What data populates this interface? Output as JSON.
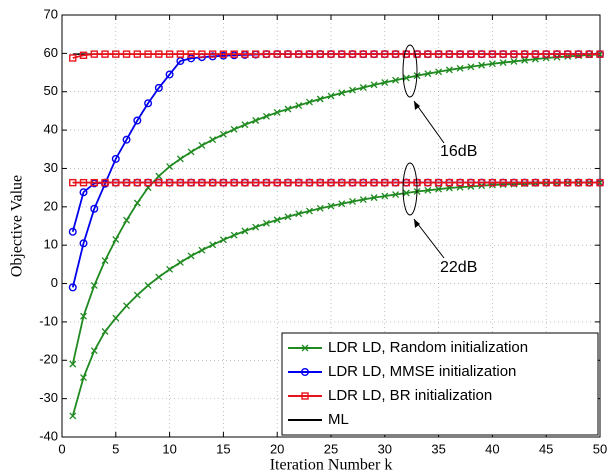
{
  "chart_data": {
    "type": "line",
    "xlabel": "Iteration Number k",
    "ylabel": "Objective Value",
    "x": [
      1,
      2,
      3,
      4,
      5,
      6,
      7,
      8,
      9,
      10,
      11,
      12,
      13,
      14,
      15,
      16,
      17,
      18,
      19,
      20,
      21,
      22,
      23,
      24,
      25,
      26,
      27,
      28,
      29,
      30,
      31,
      32,
      33,
      34,
      35,
      36,
      37,
      38,
      39,
      40,
      41,
      42,
      43,
      44,
      45,
      46,
      47,
      48,
      49,
      50
    ],
    "xlim": [
      0,
      50
    ],
    "xticks": [
      0,
      5,
      10,
      15,
      20,
      25,
      30,
      35,
      40,
      45,
      50
    ],
    "ylim": [
      -40,
      70
    ],
    "yticks": [
      -40,
      -30,
      -20,
      -10,
      0,
      10,
      20,
      30,
      40,
      50,
      60,
      70
    ],
    "grid": true,
    "legend": "lower right",
    "annotations": [
      "16dB",
      "22dB"
    ],
    "series": [
      {
        "name": "LDR LD, Random initialization",
        "color": "#1f8a1f",
        "marker": "x",
        "values": [
          [
            -21,
            -8.5,
            -0.5,
            6,
            11.5,
            16.5,
            21,
            25,
            28,
            30.5,
            32.5,
            34.3,
            36,
            37.5,
            38.9,
            40.2,
            41.4,
            42.5,
            43.6,
            44.6,
            45.5,
            46.4,
            47.3,
            48.1,
            48.9,
            49.7,
            50.4,
            51.1,
            51.8,
            52.4,
            53,
            53.6,
            54.2,
            54.7,
            55.2,
            55.7,
            56.1,
            56.5,
            56.9,
            57.3,
            57.6,
            57.9,
            58.2,
            58.5,
            58.8,
            59,
            59.2,
            59.4,
            59.6,
            59.7
          ],
          [
            -34.5,
            -24.5,
            -17.5,
            -12.5,
            -9,
            -5.8,
            -3,
            -0.5,
            1.7,
            3.7,
            5.5,
            7.2,
            8.7,
            10.1,
            11.4,
            12.6,
            13.7,
            14.7,
            15.7,
            16.6,
            17.4,
            18.2,
            18.9,
            19.6,
            20.2,
            20.8,
            21.4,
            21.9,
            22.4,
            22.8,
            23.2,
            23.6,
            24,
            24.3,
            24.6,
            24.9,
            25.1,
            25.3,
            25.5,
            25.7,
            25.8,
            25.9,
            26,
            26.1,
            26.2,
            26.2,
            26.3,
            26.3,
            26.3,
            26.3
          ]
        ]
      },
      {
        "name": "LDR LD, MMSE initialization",
        "color": "#0000ee",
        "marker": "o",
        "values": [
          [
            -1,
            10.5,
            19.5,
            26,
            32.5,
            37.5,
            42.5,
            47,
            51,
            54.5,
            58,
            58.7,
            59,
            59.2,
            59.4,
            59.5,
            59.6,
            59.7,
            59.8,
            59.8,
            59.8,
            59.8,
            59.8,
            59.8,
            59.8,
            59.8,
            59.8,
            59.8,
            59.8,
            59.8,
            59.8,
            59.8,
            59.8,
            59.8,
            59.8,
            59.8,
            59.8,
            59.8,
            59.8,
            59.8,
            59.8,
            59.8,
            59.8,
            59.8,
            59.8,
            59.8,
            59.8,
            59.8,
            59.8,
            59.8
          ],
          [
            13.5,
            23.8,
            26.1,
            26.3,
            26.3,
            26.3,
            26.3,
            26.3,
            26.3,
            26.3,
            26.3,
            26.3,
            26.3,
            26.3,
            26.3,
            26.3,
            26.3,
            26.3,
            26.3,
            26.3,
            26.3,
            26.3,
            26.3,
            26.3,
            26.3,
            26.3,
            26.3,
            26.3,
            26.3,
            26.3,
            26.3,
            26.3,
            26.3,
            26.3,
            26.3,
            26.3,
            26.3,
            26.3,
            26.3,
            26.3,
            26.3,
            26.3,
            26.3,
            26.3,
            26.3,
            26.3,
            26.3,
            26.3,
            26.3,
            26.3
          ]
        ]
      },
      {
        "name": "LDR LD, BR initialization",
        "color": "#e8141c",
        "marker": "s",
        "values": [
          [
            58.8,
            59.5,
            59.8,
            59.8,
            59.8,
            59.8,
            59.8,
            59.8,
            59.8,
            59.8,
            59.8,
            59.8,
            59.8,
            59.8,
            59.8,
            59.8,
            59.8,
            59.8,
            59.8,
            59.8,
            59.8,
            59.8,
            59.8,
            59.8,
            59.8,
            59.8,
            59.8,
            59.8,
            59.8,
            59.8,
            59.8,
            59.8,
            59.8,
            59.8,
            59.8,
            59.8,
            59.8,
            59.8,
            59.8,
            59.8,
            59.8,
            59.8,
            59.8,
            59.8,
            59.8,
            59.8,
            59.8,
            59.8,
            59.8,
            59.8
          ],
          [
            26.3,
            26.3,
            26.3,
            26.3,
            26.3,
            26.3,
            26.3,
            26.3,
            26.3,
            26.3,
            26.3,
            26.3,
            26.3,
            26.3,
            26.3,
            26.3,
            26.3,
            26.3,
            26.3,
            26.3,
            26.3,
            26.3,
            26.3,
            26.3,
            26.3,
            26.3,
            26.3,
            26.3,
            26.3,
            26.3,
            26.3,
            26.3,
            26.3,
            26.3,
            26.3,
            26.3,
            26.3,
            26.3,
            26.3,
            26.3,
            26.3,
            26.3,
            26.3,
            26.3,
            26.3,
            26.3,
            26.3,
            26.3,
            26.3,
            26.3
          ]
        ]
      },
      {
        "name": "ML",
        "color": "#000000",
        "marker": "none",
        "x": [
          1,
          50
        ],
        "values": [
          [
            59.8,
            59.8
          ],
          [
            26.3,
            26.3
          ]
        ]
      }
    ]
  }
}
